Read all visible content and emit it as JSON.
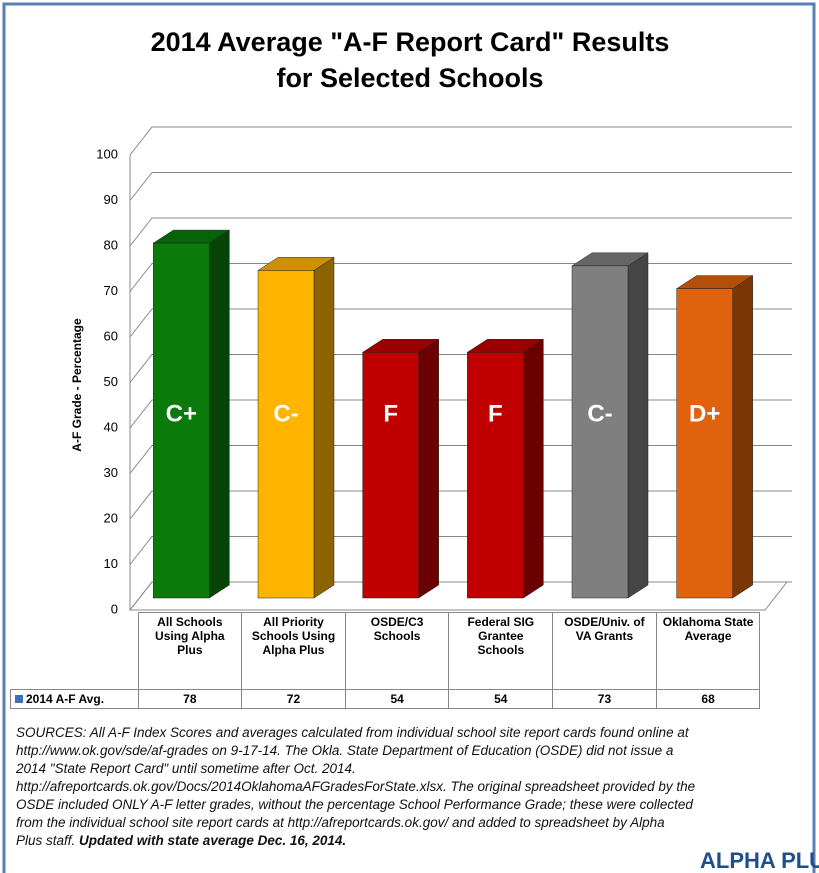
{
  "chart_data": {
    "type": "bar3d",
    "title": [
      "2014 Average \"A-F Report Card\" Results",
      "for Selected Schools"
    ],
    "y_label": "A-F Grade - Percentage",
    "categories": [
      "All Schools Using Alpha Plus",
      "All Priority Schools Using Alpha Plus",
      "OSDE/C3 Schools",
      "Federal SIG Grantee Schools",
      "OSDE/Univ. of VA Grants",
      "Oklahoma State Average"
    ],
    "series": [
      {
        "name": "2014 A-F Avg.",
        "color": "#3f6fb5",
        "values": [
          78,
          72,
          54,
          54,
          73,
          68
        ]
      }
    ],
    "bar_colors": [
      "#0a7a0a",
      "#ffb400",
      "#c00000",
      "#c00000",
      "#7f7f7f",
      "#e0620e"
    ],
    "grade_labels": [
      "C+",
      "C-",
      "F",
      "F",
      "C-",
      "D+"
    ],
    "ylim": [
      0,
      100
    ],
    "yticks": [
      0,
      10,
      20,
      30,
      40,
      50,
      60,
      70,
      80,
      90,
      100
    ],
    "grid": true
  },
  "sources": {
    "lines": [
      "SOURCES: All A-F Index Scores and averages calculated from individual school site report cards found online at",
      "http://www.ok.gov/sde/af-grades on 9-17-14. The Okla. State Department of Education (OSDE) did not issue a",
      "2014 \"State Report Card\" until sometime after Oct. 2014.",
      "http://afreportcards.ok.gov/Docs/2014OklahomaAFGradesForState.xlsx. The original spreadsheet provided by the",
      "OSDE included ONLY A-F letter grades, without the percentage School Performance Grade; these were collected",
      "from the individual school site report cards at http://afreportcards.ok.gov/ and added to spreadsheet by Alpha",
      "Plus staff."
    ],
    "bold": "Updated with state average Dec. 16, 2014."
  },
  "logo_text": "ALPHA PLUS"
}
